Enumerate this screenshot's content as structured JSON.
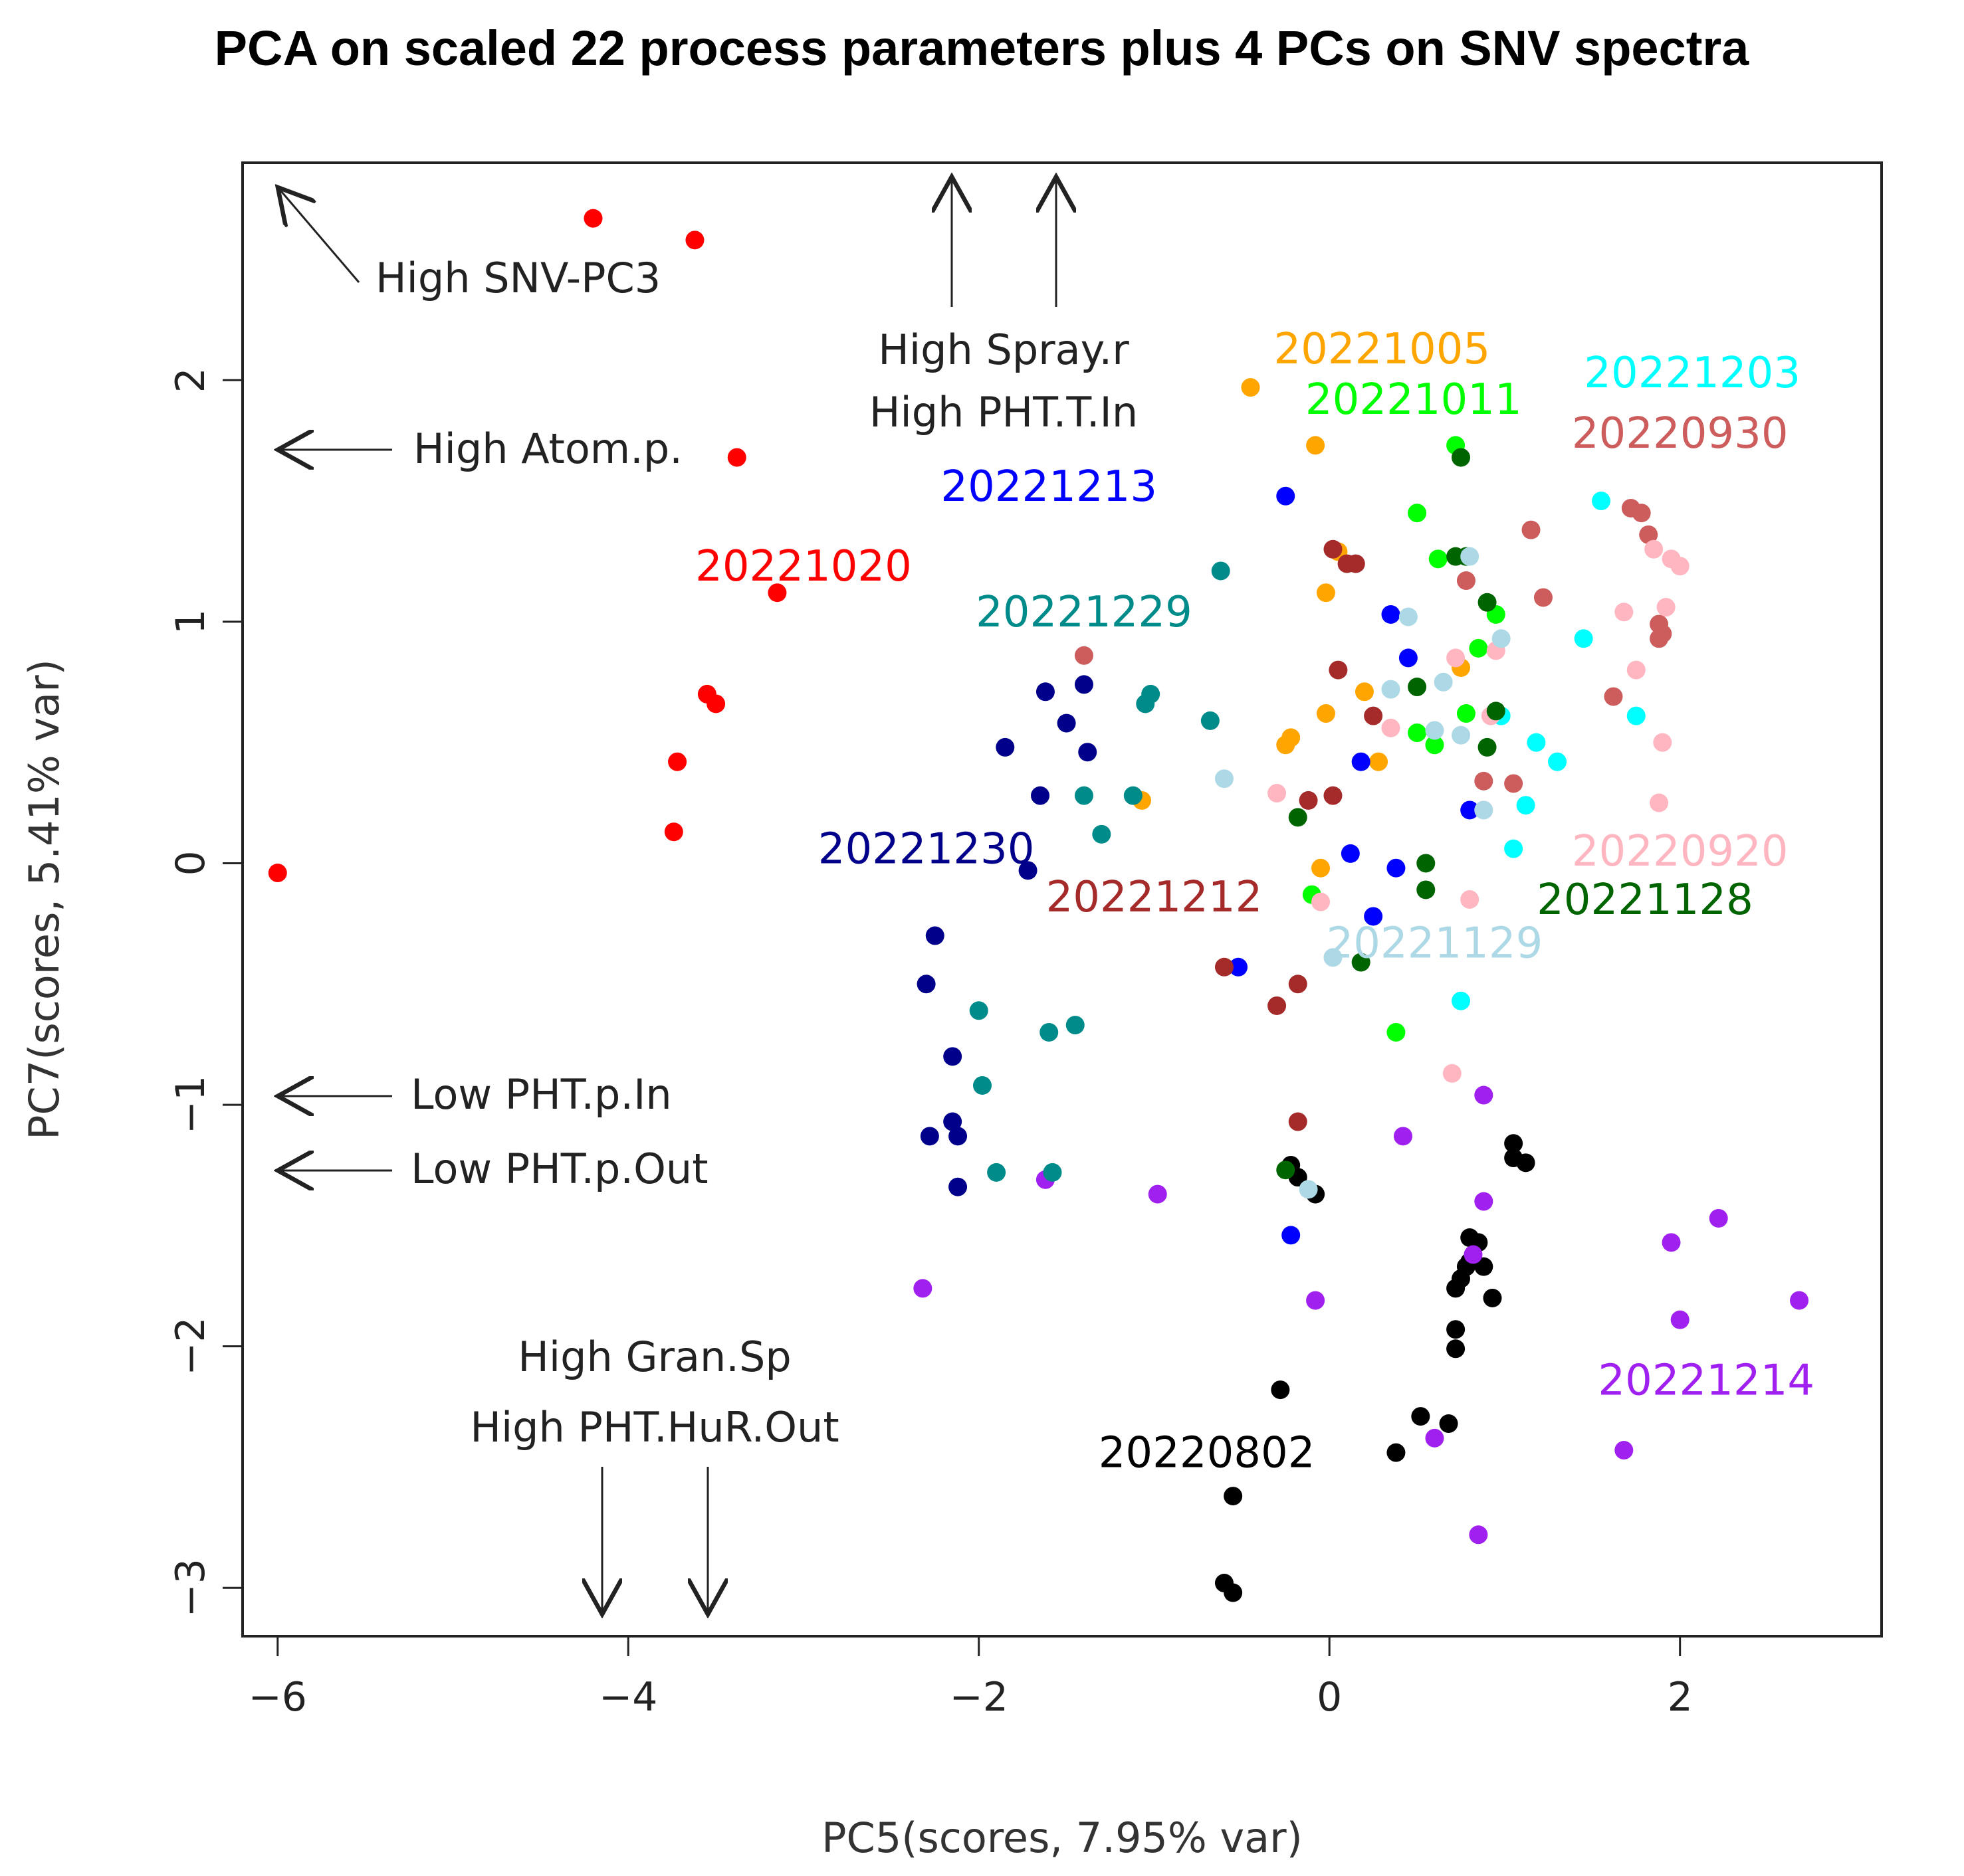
{
  "chart_data": {
    "type": "scatter",
    "title": "PCA on scaled 22 process parameters plus 4 PCs on SNV spectra",
    "xlabel": "PC5(scores, 7.95% var)",
    "ylabel": "PC7(scores, 5.41% var)",
    "xlim": [
      -6.2,
      3.15
    ],
    "ylim": [
      -3.2,
      2.9
    ],
    "xticks": [
      -6,
      -4,
      -2,
      0,
      2
    ],
    "yticks": [
      -3,
      -2,
      -1,
      0,
      1,
      2
    ],
    "xtick_labels": [
      "−6",
      "−4",
      "−2",
      "0",
      "2"
    ],
    "ytick_labels": [
      "−3",
      "−2",
      "−1",
      "0",
      "1",
      "2"
    ],
    "annotations": [
      {
        "id": "snv-pc3",
        "text": "High SNV-PC3",
        "direction": "up-left"
      },
      {
        "id": "spray-r",
        "text": "High Spray.r",
        "direction": "up"
      },
      {
        "id": "pht-t-in",
        "text": "High PHT.T.In",
        "direction": "up"
      },
      {
        "id": "atom-p",
        "text": "High Atom.p.",
        "direction": "left"
      },
      {
        "id": "pht-p-in",
        "text": "Low PHT.p.In",
        "direction": "left"
      },
      {
        "id": "pht-p-out",
        "text": "Low PHT.p.Out",
        "direction": "left"
      },
      {
        "id": "gran-sp",
        "text": "High Gran.Sp",
        "direction": "down"
      },
      {
        "id": "pht-hur-out",
        "text": "High PHT.HuR.Out",
        "direction": "down"
      }
    ],
    "series": [
      {
        "name": "20220802",
        "color": "#000000",
        "label_x": -0.7,
        "label_y": -2.5,
        "x": [
          -0.55,
          -0.6,
          -0.55,
          -0.28,
          0.38,
          0.52,
          0.68,
          0.72,
          0.72,
          0.72,
          0.75,
          0.78,
          0.8,
          0.88,
          0.93,
          1.05,
          1.05,
          1.12,
          -0.18,
          -0.22,
          -0.08,
          0.85,
          0.8
        ],
        "y": [
          -2.62,
          -2.98,
          -3.02,
          -2.18,
          -2.44,
          -2.29,
          -2.32,
          -1.93,
          -2.01,
          -1.76,
          -1.72,
          -1.67,
          -1.55,
          -1.67,
          -1.8,
          -1.16,
          -1.22,
          -1.24,
          -1.3,
          -1.25,
          -1.37,
          -1.57,
          -1.65
        ]
      },
      {
        "name": "20221214",
        "color": "#a020f0",
        "label_x": 2.15,
        "label_y": -2.2,
        "x": [
          -2.32,
          -1.62,
          -0.98,
          -0.08,
          0.42,
          0.88,
          0.88,
          0.82,
          0.6,
          0.85,
          1.68,
          1.95,
          2.0,
          2.22,
          2.68
        ],
        "y": [
          -1.76,
          -1.31,
          -1.37,
          -1.81,
          -1.13,
          -0.96,
          -1.4,
          -1.62,
          -2.38,
          -2.78,
          -2.43,
          -1.57,
          -1.89,
          -1.47,
          -1.81
        ]
      },
      {
        "name": "20221020",
        "color": "#ff0000",
        "label_x": -3.0,
        "label_y": 1.17,
        "x": [
          -4.2,
          -3.62,
          -3.38,
          -3.15,
          -3.55,
          -3.5,
          -3.72,
          -3.74,
          -6.0
        ],
        "y": [
          2.67,
          2.58,
          1.68,
          1.12,
          0.7,
          0.66,
          0.42,
          0.13,
          -0.04
        ]
      },
      {
        "name": "20221005",
        "color": "#ffa500",
        "label_x": 0.3,
        "label_y": 2.07,
        "x": [
          -0.45,
          -0.08,
          -0.02,
          0.05,
          0.2,
          0.28,
          -0.02,
          -0.22,
          -0.25,
          -0.05,
          0.75,
          -1.07
        ],
        "y": [
          1.97,
          1.73,
          1.12,
          1.29,
          0.71,
          0.42,
          0.62,
          0.52,
          0.49,
          -0.02,
          0.81,
          0.26
        ]
      },
      {
        "name": "20221011",
        "color": "#00ff00",
        "label_x": 0.48,
        "label_y": 1.86,
        "x": [
          0.72,
          0.5,
          0.62,
          0.85,
          0.95,
          0.78,
          0.5,
          0.6,
          0.38,
          -0.1
        ],
        "y": [
          1.73,
          1.45,
          1.26,
          0.89,
          1.03,
          0.62,
          0.54,
          0.49,
          -0.7,
          -0.13
        ]
      },
      {
        "name": "20221203",
        "color": "#00ffff",
        "label_x": 2.07,
        "label_y": 1.97,
        "x": [
          1.55,
          1.45,
          1.75,
          1.18,
          1.3,
          1.05,
          0.98,
          1.12,
          0.75
        ],
        "y": [
          1.5,
          0.93,
          0.61,
          0.5,
          0.42,
          0.06,
          0.61,
          0.24,
          -0.57
        ]
      },
      {
        "name": "20220930",
        "color": "#cd5c5c",
        "label_x": 2.0,
        "label_y": 1.72,
        "x": [
          1.72,
          1.78,
          1.82,
          1.88,
          1.9,
          1.88,
          1.62,
          1.15,
          1.22,
          0.78,
          0.88,
          1.05,
          -1.4
        ],
        "y": [
          1.47,
          1.45,
          1.36,
          0.99,
          0.95,
          0.93,
          0.69,
          1.38,
          1.1,
          1.17,
          0.34,
          0.33,
          0.86
        ]
      },
      {
        "name": "20221213",
        "color": "#0000ff",
        "label_x": -1.6,
        "label_y": 1.5,
        "x": [
          -0.25,
          0.35,
          0.45,
          0.18,
          0.12,
          0.25,
          0.38,
          0.8,
          -0.52,
          -0.22
        ],
        "y": [
          1.52,
          1.03,
          0.85,
          0.42,
          0.04,
          -0.22,
          -0.02,
          0.22,
          -0.43,
          -1.54
        ]
      },
      {
        "name": "20221229",
        "color": "#008b8b",
        "label_x": -1.4,
        "label_y": 0.98,
        "x": [
          -0.62,
          -0.68,
          -1.02,
          -1.05,
          -1.4,
          -1.3,
          -1.12,
          -2.0,
          -1.98,
          -1.6,
          -1.45,
          -1.9,
          -1.58
        ],
        "y": [
          1.21,
          0.59,
          0.7,
          0.66,
          0.28,
          0.12,
          0.28,
          -0.61,
          -0.92,
          -0.7,
          -0.67,
          -1.28,
          -1.28
        ]
      },
      {
        "name": "20221230",
        "color": "#00008b",
        "label_x": -2.3,
        "label_y": 0.0,
        "x": [
          -1.62,
          -1.5,
          -1.4,
          -1.38,
          -1.85,
          -1.65,
          -1.72,
          -2.25,
          -2.3,
          -2.15,
          -2.15,
          -2.12,
          -2.28,
          -2.12
        ],
        "y": [
          0.71,
          0.58,
          0.74,
          0.46,
          0.48,
          0.28,
          -0.03,
          -0.3,
          -0.5,
          -0.8,
          -1.07,
          -1.13,
          -1.13,
          -1.34
        ]
      },
      {
        "name": "20221212",
        "color": "#a52a2a",
        "label_x": -1.0,
        "label_y": -0.2,
        "x": [
          0.02,
          0.15,
          0.1,
          0.25,
          0.05,
          0.02,
          -0.12,
          -0.18,
          -0.6,
          -0.3,
          -0.18
        ],
        "y": [
          1.3,
          1.24,
          1.24,
          0.61,
          0.8,
          0.28,
          0.26,
          -0.5,
          -0.43,
          -0.59,
          -1.07
        ]
      },
      {
        "name": "20220920",
        "color": "#ffb6c1",
        "label_x": 2.0,
        "label_y": -0.01,
        "x": [
          1.85,
          1.95,
          2.0,
          1.92,
          1.68,
          1.75,
          1.9,
          1.88,
          0.95,
          0.92,
          0.88,
          0.8,
          0.7,
          0.35,
          -0.3,
          -0.05,
          0.72
        ],
        "y": [
          1.3,
          1.26,
          1.23,
          1.06,
          1.04,
          0.8,
          0.5,
          0.25,
          0.88,
          0.61,
          0.22,
          -0.15,
          -0.87,
          0.56,
          0.29,
          -0.16,
          0.85
        ]
      },
      {
        "name": "20221128",
        "color": "#006400",
        "label_x": 1.8,
        "label_y": -0.21,
        "x": [
          0.75,
          0.72,
          0.78,
          0.9,
          0.95,
          0.5,
          0.9,
          0.55,
          0.55,
          -0.18,
          0.18,
          -0.25
        ],
        "y": [
          1.68,
          1.27,
          1.27,
          1.08,
          0.63,
          0.73,
          0.48,
          0.0,
          -0.11,
          0.19,
          -0.41,
          -1.27
        ]
      },
      {
        "name": "20221129",
        "color": "#add8e6",
        "label_x": 0.6,
        "label_y": -0.39,
        "x": [
          0.8,
          0.98,
          0.45,
          0.65,
          0.6,
          0.35,
          -0.6,
          0.02,
          -0.12,
          0.88,
          0.75
        ],
        "y": [
          1.27,
          0.93,
          1.02,
          0.75,
          0.55,
          0.72,
          0.35,
          -0.39,
          -1.35,
          0.22,
          0.53
        ]
      }
    ]
  }
}
